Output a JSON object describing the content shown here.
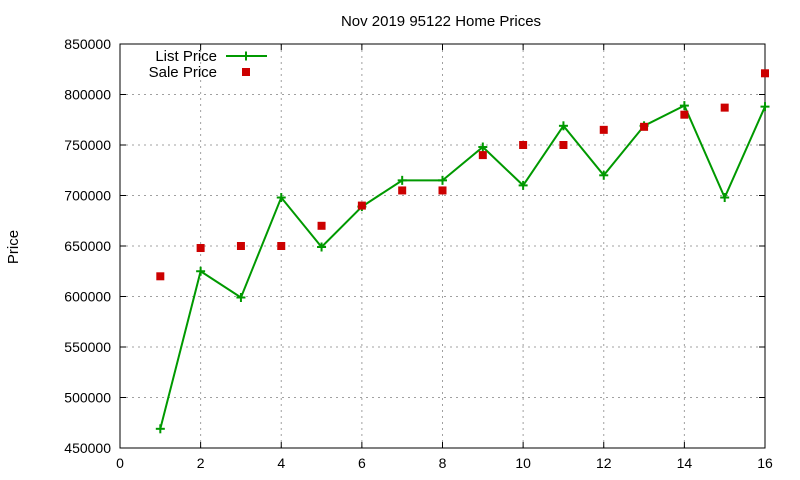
{
  "chart_data": {
    "type": "line",
    "title": "Nov 2019 95122 Home Prices",
    "xlabel": "",
    "ylabel": "Price",
    "xlim": [
      0,
      16
    ],
    "ylim": [
      450000,
      850000
    ],
    "xticks": [
      0,
      2,
      4,
      6,
      8,
      10,
      12,
      14,
      16
    ],
    "yticks": [
      450000,
      500000,
      550000,
      600000,
      650000,
      700000,
      750000,
      800000,
      850000
    ],
    "grid": true,
    "legend_position": "top-left",
    "series": [
      {
        "name": "List Price",
        "style": "line-points",
        "marker": "plus",
        "color": "#009900",
        "x": [
          1,
          2,
          3,
          4,
          5,
          6,
          7,
          8,
          9,
          10,
          11,
          12,
          13,
          14,
          15,
          16
        ],
        "y": [
          469000,
          625000,
          599000,
          698000,
          649000,
          689000,
          715000,
          715000,
          748000,
          710000,
          769000,
          720000,
          769000,
          789000,
          698000,
          788000
        ]
      },
      {
        "name": "Sale Price",
        "style": "points",
        "marker": "square",
        "color": "#cc0000",
        "x": [
          1,
          2,
          3,
          4,
          5,
          6,
          7,
          8,
          9,
          10,
          11,
          12,
          13,
          14,
          15,
          16
        ],
        "y": [
          620000,
          648000,
          650000,
          650000,
          670000,
          690000,
          705000,
          705000,
          740000,
          750000,
          750000,
          765000,
          768000,
          780000,
          787000,
          821000
        ]
      }
    ]
  }
}
